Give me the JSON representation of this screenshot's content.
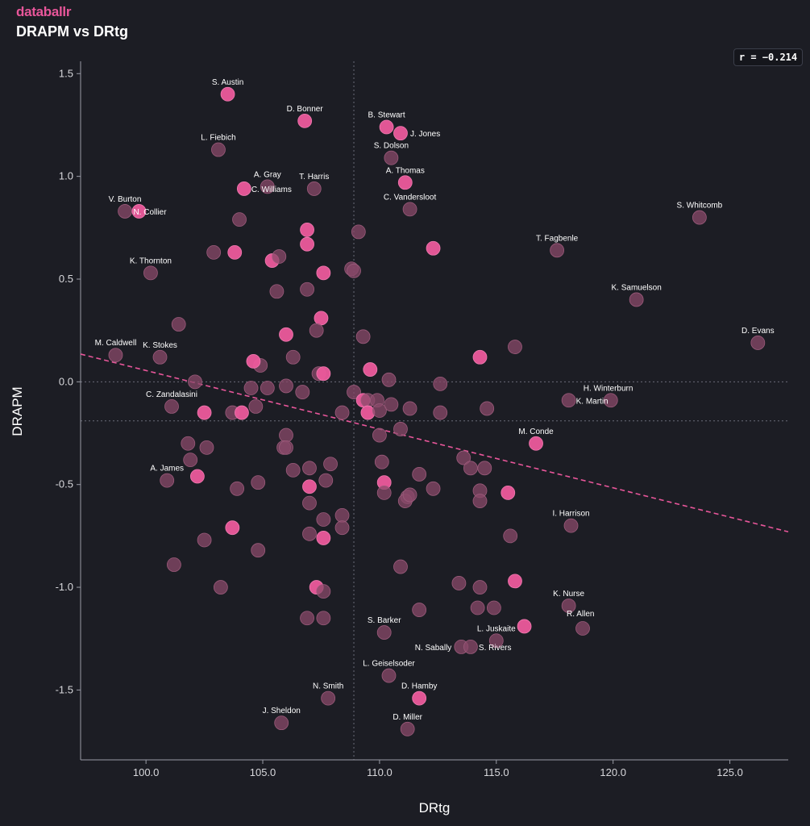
{
  "brand": "databallr",
  "title": "DRAPM vs DRtg",
  "correlation_label": "r = −0.214",
  "colors": {
    "background": "#1c1d24",
    "accent": "#e8569a",
    "point_bright": "#ec5a9c",
    "point_dim": "#8a4a6a"
  },
  "chart_data": {
    "type": "scatter",
    "xlabel": "DRtg",
    "ylabel": "DRAPM",
    "xlim": [
      97.2,
      127.5
    ],
    "ylim": [
      -1.84,
      1.56
    ],
    "xticks": [
      "100.0",
      "105.0",
      "110.0",
      "115.0",
      "120.0",
      "125.0"
    ],
    "yticks": [
      "-1.5",
      "-1.0",
      "-0.5",
      "0.0",
      "0.5",
      "1.0",
      "1.5"
    ],
    "mean_x": 108.9,
    "mean_y": -0.19,
    "trend": {
      "x0": 97.2,
      "y0": 0.135,
      "x1": 127.5,
      "y1": -0.73
    },
    "labeled_points": [
      {
        "name": "S. Austin",
        "x": 103.5,
        "y": 1.4,
        "bright": true
      },
      {
        "name": "D. Bonner",
        "x": 106.8,
        "y": 1.27,
        "bright": true
      },
      {
        "name": "B. Stewart",
        "x": 110.3,
        "y": 1.24,
        "bright": true
      },
      {
        "name": "J. Jones",
        "x": 110.9,
        "y": 1.21,
        "bright": true
      },
      {
        "name": "L. Fiebich",
        "x": 103.1,
        "y": 1.13,
        "bright": false
      },
      {
        "name": "S. Dolson",
        "x": 110.5,
        "y": 1.09,
        "bright": false
      },
      {
        "name": "A. Thomas",
        "x": 111.1,
        "y": 0.97,
        "bright": true
      },
      {
        "name": "A. Gray",
        "x": 105.2,
        "y": 0.95,
        "bright": false
      },
      {
        "name": "T. Harris",
        "x": 107.2,
        "y": 0.94,
        "bright": false
      },
      {
        "name": "C. Williams",
        "x": 104.2,
        "y": 0.94,
        "bright": true
      },
      {
        "name": "C. Vandersloot",
        "x": 111.3,
        "y": 0.84,
        "bright": false
      },
      {
        "name": "V. Burton",
        "x": 99.1,
        "y": 0.83,
        "bright": false
      },
      {
        "name": "N. Collier",
        "x": 99.7,
        "y": 0.83,
        "bright": true
      },
      {
        "name": "S. Whitcomb",
        "x": 123.7,
        "y": 0.8,
        "bright": false
      },
      {
        "name": "T. Fagbenle",
        "x": 117.6,
        "y": 0.64,
        "bright": false
      },
      {
        "name": "K. Thornton",
        "x": 100.2,
        "y": 0.53,
        "bright": false
      },
      {
        "name": "K. Samuelson",
        "x": 121.0,
        "y": 0.4,
        "bright": false
      },
      {
        "name": "D. Evans",
        "x": 126.2,
        "y": 0.19,
        "bright": false
      },
      {
        "name": "M. Caldwell",
        "x": 98.7,
        "y": 0.13,
        "bright": false
      },
      {
        "name": "K. Stokes",
        "x": 100.6,
        "y": 0.12,
        "bright": false
      },
      {
        "name": "H. Winterburn",
        "x": 119.9,
        "y": -0.09,
        "bright": false
      },
      {
        "name": "K. Martin",
        "x": 118.1,
        "y": -0.09,
        "bright": false
      },
      {
        "name": "C. Zandalasini",
        "x": 101.1,
        "y": -0.12,
        "bright": false
      },
      {
        "name": "M. Conde",
        "x": 116.7,
        "y": -0.3,
        "bright": true
      },
      {
        "name": "A. James",
        "x": 100.9,
        "y": -0.48,
        "bright": false
      },
      {
        "name": "I. Harrison",
        "x": 118.2,
        "y": -0.7,
        "bright": false
      },
      {
        "name": "K. Nurse",
        "x": 118.1,
        "y": -1.09,
        "bright": false
      },
      {
        "name": "R. Allen",
        "x": 118.7,
        "y": -1.2,
        "bright": false
      },
      {
        "name": "L. Juskaite",
        "x": 115.0,
        "y": -1.26,
        "bright": false
      },
      {
        "name": "S. Barker",
        "x": 110.2,
        "y": -1.22,
        "bright": false
      },
      {
        "name": "N. Sabally",
        "x": 113.5,
        "y": -1.29,
        "bright": false
      },
      {
        "name": "S. Rivers",
        "x": 113.9,
        "y": -1.29,
        "bright": false
      },
      {
        "name": "L. Geiselsoder",
        "x": 110.4,
        "y": -1.43,
        "bright": false
      },
      {
        "name": "N. Smith",
        "x": 107.8,
        "y": -1.54,
        "bright": false
      },
      {
        "name": "D. Hamby",
        "x": 111.7,
        "y": -1.54,
        "bright": true
      },
      {
        "name": "J. Sheldon",
        "x": 105.8,
        "y": -1.66,
        "bright": false
      },
      {
        "name": "D. Miller",
        "x": 111.2,
        "y": -1.69,
        "bright": false
      }
    ],
    "points": [
      {
        "x": 102.9,
        "y": 0.63,
        "bright": false
      },
      {
        "x": 104.0,
        "y": 0.79,
        "bright": false
      },
      {
        "x": 103.8,
        "y": 0.63,
        "bright": true
      },
      {
        "x": 105.4,
        "y": 0.59,
        "bright": true
      },
      {
        "x": 105.7,
        "y": 0.61,
        "bright": false
      },
      {
        "x": 106.9,
        "y": 0.74,
        "bright": true
      },
      {
        "x": 106.9,
        "y": 0.67,
        "bright": true
      },
      {
        "x": 109.1,
        "y": 0.73,
        "bright": false
      },
      {
        "x": 112.3,
        "y": 0.65,
        "bright": true
      },
      {
        "x": 107.6,
        "y": 0.53,
        "bright": true
      },
      {
        "x": 108.8,
        "y": 0.55,
        "bright": false
      },
      {
        "x": 108.9,
        "y": 0.54,
        "bright": false
      },
      {
        "x": 105.6,
        "y": 0.44,
        "bright": false
      },
      {
        "x": 106.9,
        "y": 0.45,
        "bright": false
      },
      {
        "x": 101.4,
        "y": 0.28,
        "bright": false
      },
      {
        "x": 107.5,
        "y": 0.31,
        "bright": true
      },
      {
        "x": 107.3,
        "y": 0.25,
        "bright": false
      },
      {
        "x": 106.0,
        "y": 0.23,
        "bright": true
      },
      {
        "x": 109.3,
        "y": 0.22,
        "bright": false
      },
      {
        "x": 115.8,
        "y": 0.17,
        "bright": false
      },
      {
        "x": 114.3,
        "y": 0.12,
        "bright": true
      },
      {
        "x": 106.3,
        "y": 0.12,
        "bright": false
      },
      {
        "x": 104.9,
        "y": 0.08,
        "bright": false
      },
      {
        "x": 104.6,
        "y": 0.1,
        "bright": true
      },
      {
        "x": 109.6,
        "y": 0.06,
        "bright": true
      },
      {
        "x": 107.4,
        "y": 0.04,
        "bright": false
      },
      {
        "x": 107.6,
        "y": 0.04,
        "bright": true
      },
      {
        "x": 110.4,
        "y": 0.01,
        "bright": false
      },
      {
        "x": 102.1,
        "y": 0.0,
        "bright": false
      },
      {
        "x": 112.6,
        "y": -0.01,
        "bright": false
      },
      {
        "x": 104.5,
        "y": -0.03,
        "bright": false
      },
      {
        "x": 105.2,
        "y": -0.03,
        "bright": false
      },
      {
        "x": 106.0,
        "y": -0.02,
        "bright": false
      },
      {
        "x": 106.7,
        "y": -0.05,
        "bright": false
      },
      {
        "x": 108.9,
        "y": -0.05,
        "bright": false
      },
      {
        "x": 109.3,
        "y": -0.09,
        "bright": true
      },
      {
        "x": 109.5,
        "y": -0.09,
        "bright": false
      },
      {
        "x": 109.9,
        "y": -0.09,
        "bright": false
      },
      {
        "x": 110.5,
        "y": -0.11,
        "bright": false
      },
      {
        "x": 111.3,
        "y": -0.13,
        "bright": false
      },
      {
        "x": 114.6,
        "y": -0.13,
        "bright": false
      },
      {
        "x": 112.6,
        "y": -0.15,
        "bright": false
      },
      {
        "x": 109.5,
        "y": -0.15,
        "bright": true
      },
      {
        "x": 110.0,
        "y": -0.14,
        "bright": false
      },
      {
        "x": 108.4,
        "y": -0.15,
        "bright": false
      },
      {
        "x": 102.5,
        "y": -0.15,
        "bright": true
      },
      {
        "x": 103.7,
        "y": -0.15,
        "bright": false
      },
      {
        "x": 104.1,
        "y": -0.15,
        "bright": true
      },
      {
        "x": 104.7,
        "y": -0.12,
        "bright": false
      },
      {
        "x": 110.9,
        "y": -0.23,
        "bright": false
      },
      {
        "x": 110.0,
        "y": -0.26,
        "bright": false
      },
      {
        "x": 106.0,
        "y": -0.26,
        "bright": false
      },
      {
        "x": 105.9,
        "y": -0.32,
        "bright": false
      },
      {
        "x": 106.0,
        "y": -0.32,
        "bright": false
      },
      {
        "x": 101.8,
        "y": -0.3,
        "bright": false
      },
      {
        "x": 102.6,
        "y": -0.32,
        "bright": false
      },
      {
        "x": 101.9,
        "y": -0.38,
        "bright": false
      },
      {
        "x": 110.1,
        "y": -0.39,
        "bright": false
      },
      {
        "x": 113.6,
        "y": -0.37,
        "bright": false
      },
      {
        "x": 113.9,
        "y": -0.42,
        "bright": false
      },
      {
        "x": 114.5,
        "y": -0.42,
        "bright": false
      },
      {
        "x": 107.9,
        "y": -0.4,
        "bright": false
      },
      {
        "x": 107.0,
        "y": -0.42,
        "bright": false
      },
      {
        "x": 106.3,
        "y": -0.43,
        "bright": false
      },
      {
        "x": 102.2,
        "y": -0.46,
        "bright": true
      },
      {
        "x": 104.8,
        "y": -0.49,
        "bright": false
      },
      {
        "x": 103.9,
        "y": -0.52,
        "bright": false
      },
      {
        "x": 107.0,
        "y": -0.51,
        "bright": true
      },
      {
        "x": 107.7,
        "y": -0.48,
        "bright": false
      },
      {
        "x": 110.2,
        "y": -0.49,
        "bright": true
      },
      {
        "x": 111.7,
        "y": -0.45,
        "bright": false
      },
      {
        "x": 112.3,
        "y": -0.52,
        "bright": false
      },
      {
        "x": 110.2,
        "y": -0.54,
        "bright": false
      },
      {
        "x": 111.2,
        "y": -0.56,
        "bright": false
      },
      {
        "x": 111.1,
        "y": -0.58,
        "bright": false
      },
      {
        "x": 111.3,
        "y": -0.55,
        "bright": false
      },
      {
        "x": 114.3,
        "y": -0.53,
        "bright": false
      },
      {
        "x": 114.3,
        "y": -0.58,
        "bright": false
      },
      {
        "x": 115.5,
        "y": -0.54,
        "bright": true
      },
      {
        "x": 107.0,
        "y": -0.59,
        "bright": false
      },
      {
        "x": 108.4,
        "y": -0.65,
        "bright": false
      },
      {
        "x": 107.6,
        "y": -0.67,
        "bright": false
      },
      {
        "x": 108.4,
        "y": -0.71,
        "bright": false
      },
      {
        "x": 103.7,
        "y": -0.71,
        "bright": true
      },
      {
        "x": 107.0,
        "y": -0.74,
        "bright": false
      },
      {
        "x": 107.6,
        "y": -0.76,
        "bright": true
      },
      {
        "x": 115.6,
        "y": -0.75,
        "bright": false
      },
      {
        "x": 102.5,
        "y": -0.77,
        "bright": false
      },
      {
        "x": 104.8,
        "y": -0.82,
        "bright": false
      },
      {
        "x": 101.2,
        "y": -0.89,
        "bright": false
      },
      {
        "x": 110.9,
        "y": -0.9,
        "bright": false
      },
      {
        "x": 103.2,
        "y": -1.0,
        "bright": false
      },
      {
        "x": 107.3,
        "y": -1.0,
        "bright": true
      },
      {
        "x": 107.6,
        "y": -1.02,
        "bright": false
      },
      {
        "x": 113.4,
        "y": -0.98,
        "bright": false
      },
      {
        "x": 114.3,
        "y": -1.0,
        "bright": false
      },
      {
        "x": 115.8,
        "y": -0.97,
        "bright": true
      },
      {
        "x": 114.2,
        "y": -1.1,
        "bright": false
      },
      {
        "x": 114.9,
        "y": -1.1,
        "bright": false
      },
      {
        "x": 111.7,
        "y": -1.11,
        "bright": false
      },
      {
        "x": 106.9,
        "y": -1.15,
        "bright": false
      },
      {
        "x": 107.6,
        "y": -1.15,
        "bright": false
      },
      {
        "x": 116.2,
        "y": -1.19,
        "bright": true
      }
    ]
  }
}
